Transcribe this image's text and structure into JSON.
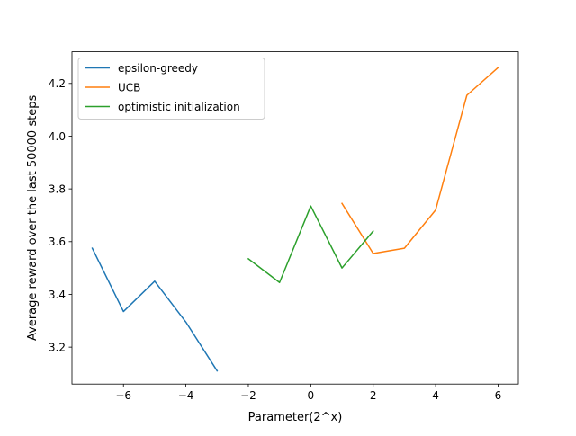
{
  "chart_data": {
    "type": "line",
    "title": "",
    "xlabel": "Parameter(2^x)",
    "ylabel": "Average reward over the last 50000 steps",
    "xlim": [
      -7.65,
      6.65
    ],
    "ylim": [
      3.06,
      4.32
    ],
    "xticks": [
      -6,
      -4,
      -2,
      0,
      2,
      4,
      6
    ],
    "xtick_labels": [
      "−6",
      "−4",
      "−2",
      "0",
      "2",
      "4",
      "6"
    ],
    "yticks": [
      3.2,
      3.4,
      3.6,
      3.8,
      4.0,
      4.2
    ],
    "ytick_labels": [
      "3.2",
      "3.4",
      "3.6",
      "3.8",
      "4.0",
      "4.2"
    ],
    "grid": false,
    "legend_position": "top-left",
    "series": [
      {
        "name": "epsilon-greedy",
        "color": "#1f77b4",
        "x": [
          -7,
          -6,
          -5,
          -4,
          -3
        ],
        "y": [
          3.575,
          3.335,
          3.45,
          3.295,
          3.11
        ]
      },
      {
        "name": "UCB",
        "color": "#ff7f0e",
        "x": [
          1,
          2,
          3,
          4,
          5,
          6
        ],
        "y": [
          3.745,
          3.555,
          3.575,
          3.72,
          4.155,
          4.26
        ]
      },
      {
        "name": "optimistic initialization",
        "color": "#2ca02c",
        "x": [
          -2,
          -1,
          0,
          1,
          2
        ],
        "y": [
          3.535,
          3.445,
          3.735,
          3.5,
          3.64
        ]
      }
    ]
  }
}
